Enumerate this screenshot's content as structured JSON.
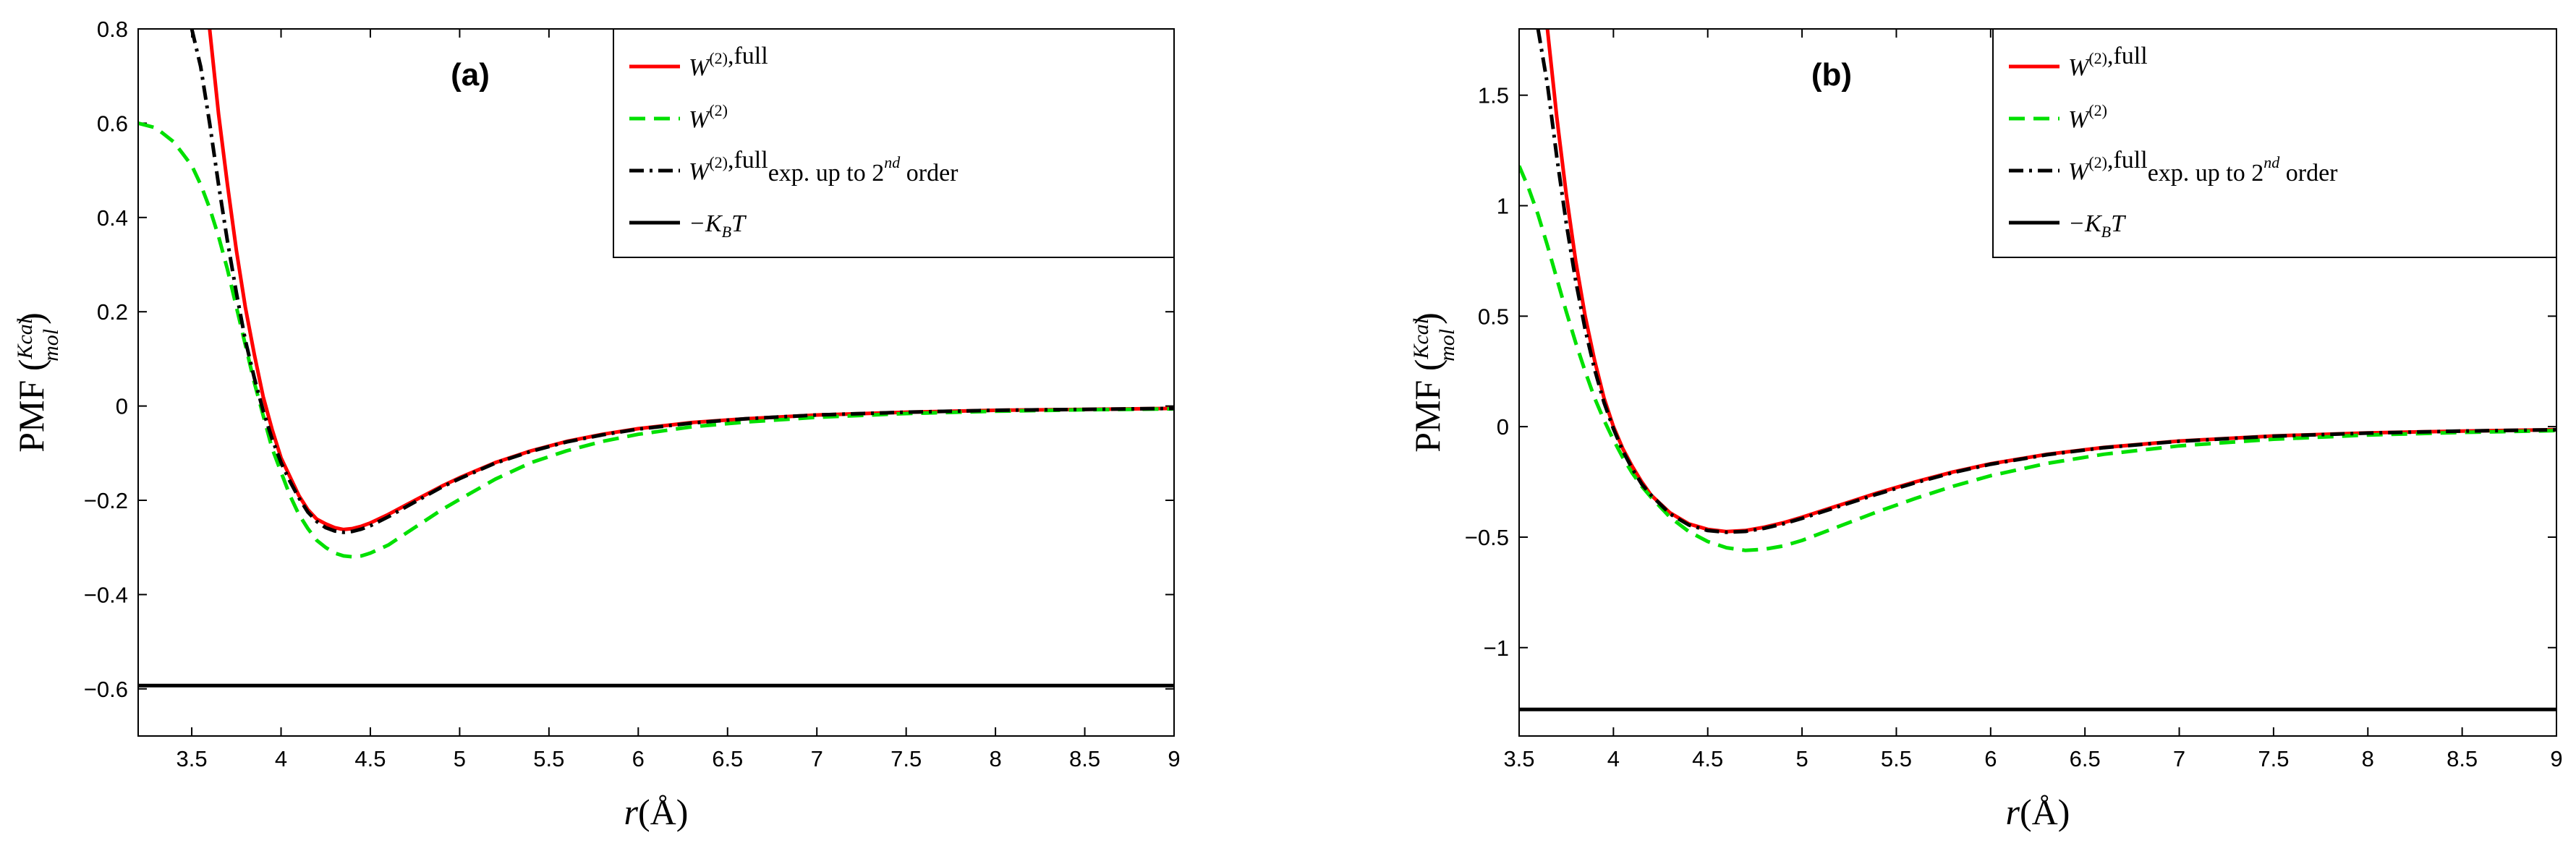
{
  "chart_data": [
    {
      "type": "line",
      "panel_label": "(a)",
      "xlabel": "r(Å)",
      "ylabel": "PMF",
      "ylabel_unit_num": "Kcal",
      "ylabel_unit_den": "mol",
      "xlim": [
        3.2,
        9
      ],
      "ylim": [
        -0.7,
        0.8
      ],
      "xticks": [
        "3.5",
        "4",
        "4.5",
        "5",
        "5.5",
        "6",
        "6.5",
        "7",
        "7.5",
        "8",
        "8.5",
        "9"
      ],
      "yticks": [
        "0.8",
        "0.6",
        "0.4",
        "0.2",
        "0",
        "-0.2",
        "-0.4",
        "-0.6"
      ],
      "legend": [
        {
          "base": "W",
          "sup": "(2)",
          "text": ",full",
          "extra": "",
          "extra_sup": "",
          "extra_tail": "",
          "color": "#ff0000",
          "dash": "solid"
        },
        {
          "base": "W",
          "sup": "(2)",
          "text": "",
          "extra": "",
          "extra_sup": "",
          "extra_tail": "",
          "color": "#00e000",
          "dash": "dashed"
        },
        {
          "base": "W",
          "sup": "(2)",
          "text": ",full",
          "extra": "exp. up to 2",
          "extra_sup": "nd",
          "extra_tail": " order",
          "color": "#000000",
          "dash": "dashdot"
        },
        {
          "base": "−K",
          "sup": "",
          "text": "",
          "extra": "",
          "extra_sup": "",
          "extra_tail": "",
          "sub": "B",
          "tail": "T",
          "color": "#000000",
          "dash": "solid"
        }
      ],
      "series": [
        {
          "name": "W(2),full",
          "color": "#ff0000",
          "dash": "solid",
          "x": [
            3.6,
            3.65,
            3.7,
            3.75,
            3.8,
            3.85,
            3.9,
            3.95,
            4.0,
            4.05,
            4.1,
            4.15,
            4.2,
            4.25,
            4.3,
            4.35,
            4.4,
            4.45,
            4.5,
            4.6,
            4.7,
            4.8,
            4.9,
            5.0,
            5.2,
            5.4,
            5.6,
            5.8,
            6.0,
            6.3,
            6.6,
            7.0,
            7.5,
            8.0,
            8.5,
            9.0
          ],
          "y": [
            0.8,
            0.62,
            0.47,
            0.33,
            0.21,
            0.11,
            0.02,
            -0.05,
            -0.11,
            -0.15,
            -0.19,
            -0.22,
            -0.24,
            -0.25,
            -0.258,
            -0.262,
            -0.26,
            -0.255,
            -0.248,
            -0.23,
            -0.21,
            -0.19,
            -0.17,
            -0.152,
            -0.12,
            -0.095,
            -0.075,
            -0.06,
            -0.048,
            -0.035,
            -0.027,
            -0.019,
            -0.013,
            -0.009,
            -0.007,
            -0.005
          ]
        },
        {
          "name": "W(2)",
          "color": "#00e000",
          "dash": "dashed",
          "x": [
            3.2,
            3.3,
            3.4,
            3.5,
            3.55,
            3.6,
            3.65,
            3.7,
            3.75,
            3.8,
            3.85,
            3.9,
            3.95,
            4.0,
            4.05,
            4.1,
            4.15,
            4.2,
            4.25,
            4.3,
            4.35,
            4.4,
            4.45,
            4.5,
            4.6,
            4.7,
            4.8,
            4.9,
            5.0,
            5.2,
            5.4,
            5.6,
            5.8,
            6.0,
            6.3,
            6.6,
            7.0,
            7.5,
            8.0,
            8.5,
            9.0
          ],
          "y": [
            0.6,
            0.59,
            0.56,
            0.51,
            0.47,
            0.42,
            0.36,
            0.29,
            0.21,
            0.13,
            0.05,
            -0.02,
            -0.09,
            -0.14,
            -0.19,
            -0.23,
            -0.26,
            -0.285,
            -0.3,
            -0.312,
            -0.318,
            -0.32,
            -0.318,
            -0.312,
            -0.295,
            -0.27,
            -0.245,
            -0.22,
            -0.198,
            -0.155,
            -0.12,
            -0.095,
            -0.075,
            -0.06,
            -0.044,
            -0.034,
            -0.024,
            -0.016,
            -0.011,
            -0.008,
            -0.006
          ]
        },
        {
          "name": "W(2),full exp. up to 2nd order",
          "color": "#000000",
          "dash": "dashdot",
          "x": [
            3.5,
            3.55,
            3.6,
            3.65,
            3.7,
            3.75,
            3.8,
            3.85,
            3.9,
            3.95,
            4.0,
            4.05,
            4.1,
            4.15,
            4.2,
            4.25,
            4.3,
            4.35,
            4.4,
            4.45,
            4.5,
            4.6,
            4.7,
            4.8,
            4.9,
            5.0,
            5.2,
            5.4,
            5.6,
            5.8,
            6.0,
            6.3,
            6.6,
            7.0,
            7.5,
            8.0,
            8.5,
            9.0
          ],
          "y": [
            0.8,
            0.72,
            0.6,
            0.47,
            0.35,
            0.24,
            0.14,
            0.06,
            -0.01,
            -0.07,
            -0.12,
            -0.16,
            -0.195,
            -0.225,
            -0.245,
            -0.258,
            -0.265,
            -0.268,
            -0.266,
            -0.261,
            -0.254,
            -0.235,
            -0.214,
            -0.193,
            -0.172,
            -0.154,
            -0.121,
            -0.096,
            -0.076,
            -0.061,
            -0.049,
            -0.036,
            -0.027,
            -0.019,
            -0.013,
            -0.009,
            -0.007,
            -0.005
          ]
        },
        {
          "name": "-KBT",
          "color": "#000000",
          "dash": "solid",
          "x": [
            3.2,
            9.0
          ],
          "y": [
            -0.593,
            -0.593
          ]
        }
      ]
    },
    {
      "type": "line",
      "panel_label": "(b)",
      "xlabel": "r(Å)",
      "ylabel": "PMF",
      "ylabel_unit_num": "Kcal",
      "ylabel_unit_den": "mol",
      "xlim": [
        3.5,
        9
      ],
      "ylim": [
        -1.4,
        1.8
      ],
      "xticks": [
        "3.5",
        "4",
        "4.5",
        "5",
        "5.5",
        "6",
        "6.5",
        "7",
        "7.5",
        "8",
        "8.5",
        "9"
      ],
      "yticks": [
        "1.5",
        "1",
        "0.5",
        "0",
        "-0.5",
        "-1"
      ],
      "legend": [
        {
          "base": "W",
          "sup": "(2)",
          "text": ",full",
          "extra": "",
          "extra_sup": "",
          "extra_tail": "",
          "color": "#ff0000",
          "dash": "solid"
        },
        {
          "base": "W",
          "sup": "(2)",
          "text": "",
          "extra": "",
          "extra_sup": "",
          "extra_tail": "",
          "color": "#00e000",
          "dash": "dashed"
        },
        {
          "base": "W",
          "sup": "(2)",
          "text": ",full",
          "extra": "exp. up to 2",
          "extra_sup": "nd",
          "extra_tail": " order",
          "color": "#000000",
          "dash": "dashdot"
        },
        {
          "base": "−K",
          "sup": "",
          "text": "",
          "extra": "",
          "extra_sup": "",
          "extra_tail": "",
          "sub": "B",
          "tail": "T",
          "color": "#000000",
          "dash": "solid"
        }
      ],
      "series": [
        {
          "name": "W(2),full",
          "color": "#ff0000",
          "dash": "solid",
          "x": [
            3.65,
            3.7,
            3.75,
            3.8,
            3.85,
            3.9,
            3.95,
            4.0,
            4.05,
            4.1,
            4.15,
            4.2,
            4.3,
            4.4,
            4.5,
            4.6,
            4.7,
            4.8,
            4.9,
            5.0,
            5.2,
            5.4,
            5.6,
            5.8,
            6.0,
            6.3,
            6.6,
            7.0,
            7.5,
            8.0,
            8.5,
            9.0
          ],
          "y": [
            1.8,
            1.4,
            1.05,
            0.75,
            0.5,
            0.3,
            0.13,
            0.0,
            -0.1,
            -0.18,
            -0.25,
            -0.31,
            -0.39,
            -0.44,
            -0.465,
            -0.475,
            -0.47,
            -0.455,
            -0.435,
            -0.41,
            -0.355,
            -0.3,
            -0.25,
            -0.205,
            -0.168,
            -0.125,
            -0.094,
            -0.065,
            -0.042,
            -0.028,
            -0.02,
            -0.014
          ]
        },
        {
          "name": "W(2)",
          "color": "#00e000",
          "dash": "dashed",
          "x": [
            3.5,
            3.55,
            3.6,
            3.65,
            3.7,
            3.75,
            3.8,
            3.85,
            3.9,
            3.95,
            4.0,
            4.05,
            4.1,
            4.15,
            4.2,
            4.3,
            4.4,
            4.5,
            4.6,
            4.7,
            4.8,
            4.9,
            5.0,
            5.2,
            5.4,
            5.6,
            5.8,
            6.0,
            6.3,
            6.6,
            7.0,
            7.5,
            8.0,
            8.5,
            9.0
          ],
          "y": [
            1.18,
            1.08,
            0.96,
            0.82,
            0.67,
            0.52,
            0.38,
            0.25,
            0.13,
            0.03,
            -0.06,
            -0.14,
            -0.21,
            -0.27,
            -0.32,
            -0.41,
            -0.475,
            -0.52,
            -0.548,
            -0.56,
            -0.555,
            -0.54,
            -0.515,
            -0.45,
            -0.385,
            -0.325,
            -0.27,
            -0.222,
            -0.166,
            -0.125,
            -0.087,
            -0.057,
            -0.038,
            -0.026,
            -0.018
          ]
        },
        {
          "name": "W(2),full exp. up to 2nd order",
          "color": "#000000",
          "dash": "dashdot",
          "x": [
            3.6,
            3.65,
            3.7,
            3.75,
            3.8,
            3.85,
            3.9,
            3.95,
            4.0,
            4.05,
            4.1,
            4.15,
            4.2,
            4.3,
            4.4,
            4.5,
            4.6,
            4.7,
            4.8,
            4.9,
            5.0,
            5.2,
            5.4,
            5.6,
            5.8,
            6.0,
            6.3,
            6.6,
            7.0,
            7.5,
            8.0,
            8.5,
            9.0
          ],
          "y": [
            1.8,
            1.55,
            1.22,
            0.92,
            0.66,
            0.44,
            0.26,
            0.11,
            -0.01,
            -0.11,
            -0.19,
            -0.26,
            -0.31,
            -0.395,
            -0.445,
            -0.47,
            -0.478,
            -0.474,
            -0.46,
            -0.44,
            -0.415,
            -0.36,
            -0.305,
            -0.254,
            -0.208,
            -0.17,
            -0.127,
            -0.095,
            -0.066,
            -0.043,
            -0.029,
            -0.02,
            -0.014
          ]
        },
        {
          "name": "-KBT",
          "color": "#000000",
          "dash": "solid",
          "x": [
            3.5,
            9.0
          ],
          "y": [
            -1.28,
            -1.28
          ]
        }
      ]
    }
  ]
}
